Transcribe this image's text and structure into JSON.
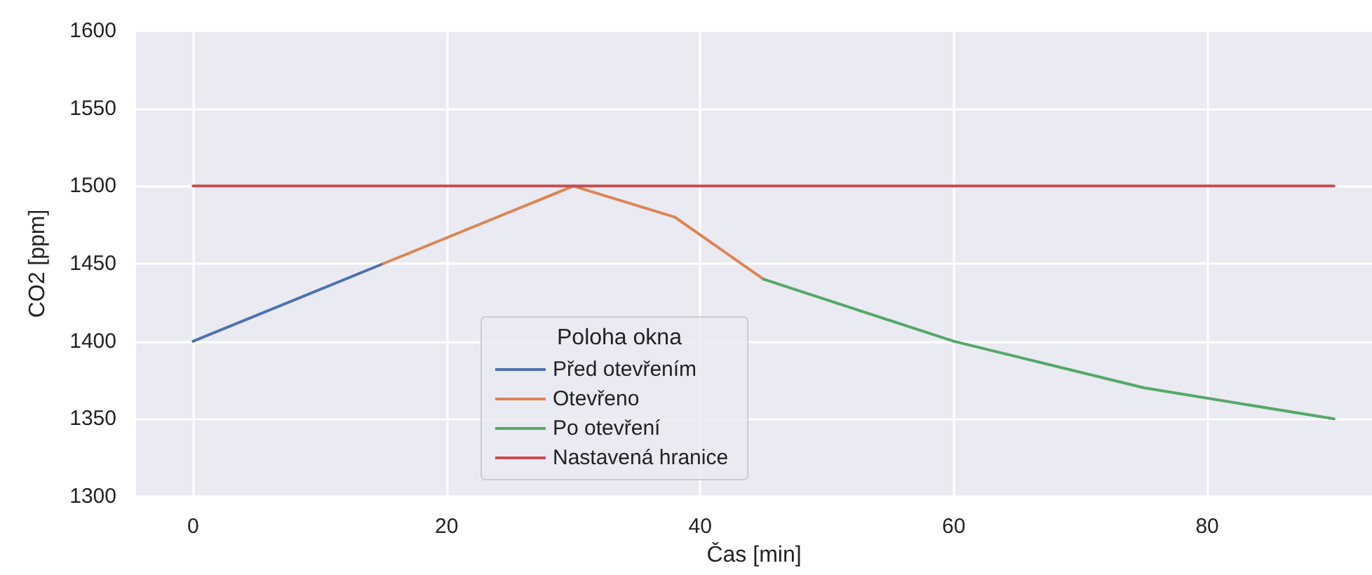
{
  "chart_data": {
    "type": "line",
    "xlabel": "Čas [min]",
    "ylabel": "CO2 [ppm]",
    "legend_title": "Poloha okna",
    "series": [
      {
        "name": "Před otevřením",
        "color": "#4c72b0",
        "x": [
          0,
          15
        ],
        "values": [
          1400,
          1450
        ]
      },
      {
        "name": "Otevřeno",
        "color": "#dd8452",
        "x": [
          15,
          30,
          38,
          45
        ],
        "values": [
          1450,
          1500,
          1480,
          1440
        ]
      },
      {
        "name": "Po otevření",
        "color": "#55a868",
        "x": [
          45,
          60,
          75,
          90
        ],
        "values": [
          1440,
          1400,
          1370,
          1350
        ]
      },
      {
        "name": "Nastavená hranice",
        "color": "#c44e52",
        "x": [
          0,
          90
        ],
        "values": [
          1500,
          1500
        ]
      }
    ],
    "xlim": [
      -4.5,
      93
    ],
    "xticks": [
      0,
      20,
      40,
      60,
      80
    ],
    "ylim": [
      1300,
      1600
    ],
    "yticks": [
      1300,
      1350,
      1400,
      1450,
      1500,
      1550,
      1600
    ],
    "grid": true,
    "legend": "bottom",
    "marker": "none",
    "line_style": "solid"
  }
}
